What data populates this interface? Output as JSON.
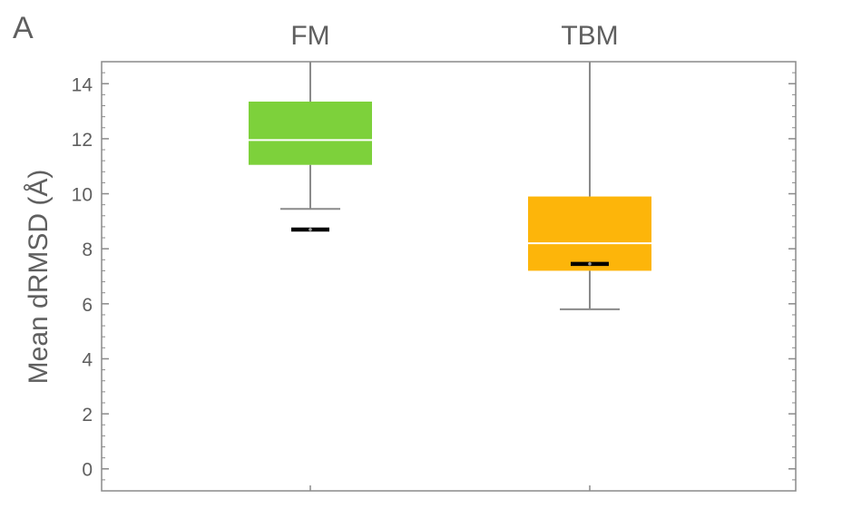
{
  "panel_label": "A",
  "chart_data": {
    "type": "box",
    "title": "",
    "xlabel": "",
    "ylabel": "Mean dRMSD (Å)",
    "categories": [
      "FM",
      "TBM"
    ],
    "ylim": [
      -0.8,
      14.8
    ],
    "yticks": [
      0,
      2,
      4,
      6,
      8,
      10,
      12,
      14
    ],
    "grid": false,
    "boxes": [
      {
        "category": "FM",
        "color": "#7dd13b",
        "whisker_low": 9.45,
        "q1": 11.05,
        "median": 11.95,
        "q3": 13.35,
        "whisker_high": 14.8,
        "marker": 8.7
      },
      {
        "category": "TBM",
        "color": "#fdb50a",
        "whisker_low": 5.8,
        "q1": 7.2,
        "median": 8.2,
        "q3": 9.9,
        "whisker_high": 14.8,
        "marker": 7.45
      }
    ]
  }
}
